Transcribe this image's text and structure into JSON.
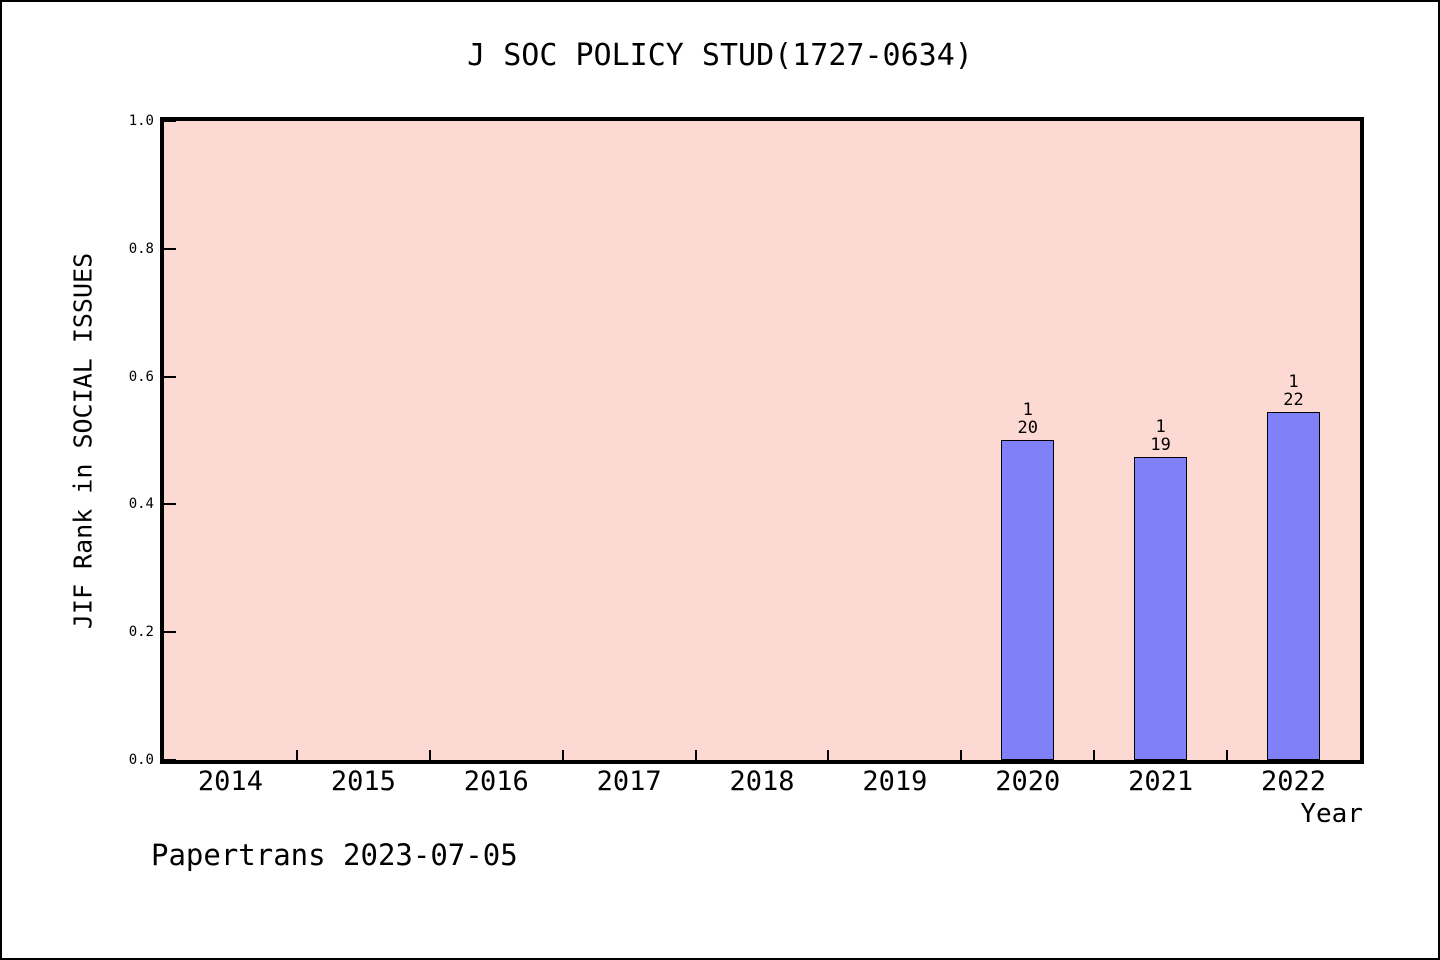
{
  "window": {
    "background": "#ffffff",
    "border_color": "#000000"
  },
  "footer": {
    "text": "Papertrans 2023-07-05"
  },
  "chart_data": {
    "type": "bar",
    "title": "J SOC POLICY STUD(1727-0634)",
    "xlabel": "Year",
    "ylabel": "JIF Rank in SOCIAL ISSUES",
    "categories": [
      "2014",
      "2015",
      "2016",
      "2017",
      "2018",
      "2019",
      "2020",
      "2021",
      "2022"
    ],
    "y_ticks": [
      "0.0",
      "0.2",
      "0.4",
      "0.6",
      "0.8",
      "1.0"
    ],
    "ylim": [
      0.0,
      1.0
    ],
    "grid": false,
    "tick_direction": "in",
    "bar_width_fraction": 0.4,
    "bars": [
      {
        "category": "2020",
        "value": 0.5,
        "label_lines": [
          "1",
          "20"
        ]
      },
      {
        "category": "2021",
        "value": 0.474,
        "label_lines": [
          "1",
          "19"
        ]
      },
      {
        "category": "2022",
        "value": 0.545,
        "label_lines": [
          "1",
          "22"
        ]
      }
    ],
    "colors": {
      "plot_background": "#fdd9d4",
      "bar_fill": "#8080f8",
      "bar_border": "#000000",
      "axis_color": "#000000",
      "text_color": "#000000"
    },
    "annotation": "Papertrans 2023-07-05"
  }
}
